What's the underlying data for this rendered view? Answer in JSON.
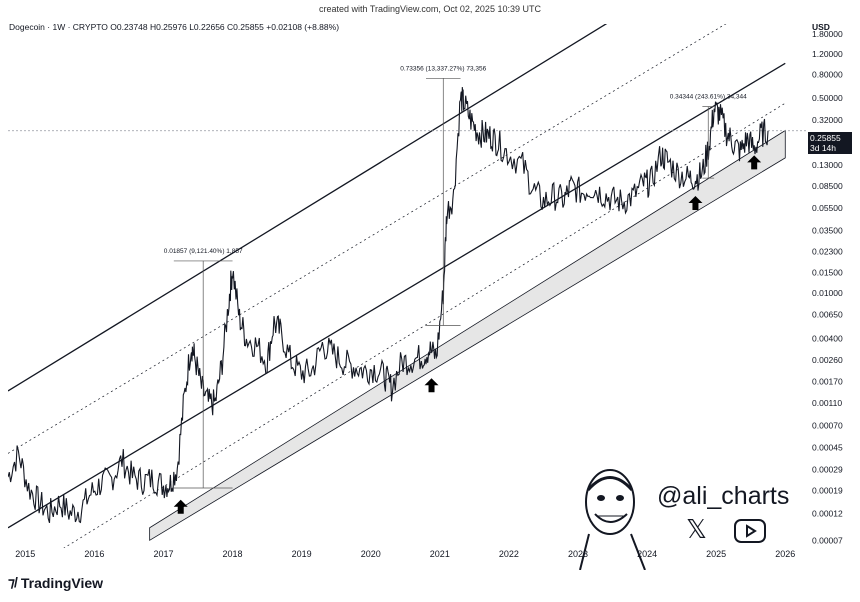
{
  "caption": "created with TradingView.com, Oct 02, 2025 10:39 UTC",
  "footer_brand": "TradingView",
  "watermark": {
    "handle": "@ali_charts"
  },
  "price_tag": {
    "price": "0.25855",
    "countdown": "3d 14h"
  },
  "chart_data": {
    "type": "line",
    "title": "Dogecoin · 1W · CRYPTO",
    "ohlc": {
      "open": "O0.23748",
      "high": "H0.25976",
      "low": "L0.22656",
      "close": "C0.25855",
      "change": "+0.02108 (+8.88%)"
    },
    "currency_label": "USD",
    "y_scale": "log",
    "ylim": [
      6e-05,
      2.2
    ],
    "xlim": [
      2014.75,
      2026.3
    ],
    "x_ticks": [
      "2015",
      "2016",
      "2017",
      "2018",
      "2019",
      "2020",
      "2021",
      "2022",
      "2023",
      "2024",
      "2025",
      "2026"
    ],
    "y_ticks": [
      "1.80000",
      "1.20000",
      "0.80000",
      "0.50000",
      "0.32000",
      "0.20000",
      "0.13000",
      "0.08500",
      "0.05500",
      "0.03500",
      "0.02300",
      "0.01500",
      "0.01000",
      "0.00650",
      "0.00400",
      "0.00260",
      "0.00170",
      "0.00110",
      "0.00070",
      "0.00045",
      "0.00029",
      "0.00019",
      "0.00012",
      "0.00007"
    ],
    "series": [
      {
        "x": [
          2014.75,
          2014.9,
          2015.05,
          2015.2,
          2015.35,
          2015.5,
          2015.65,
          2015.8,
          2015.95,
          2016.1,
          2016.25,
          2016.4,
          2016.55,
          2016.7,
          2016.85,
          2017.0,
          2017.1,
          2017.2,
          2017.3,
          2017.4,
          2017.45,
          2017.55,
          2017.65,
          2017.75,
          2017.85,
          2017.95,
          2018.0,
          2018.1,
          2018.2,
          2018.35,
          2018.5,
          2018.6,
          2018.7,
          2018.85,
          2019.0,
          2019.15,
          2019.3,
          2019.45,
          2019.6,
          2019.75,
          2019.9,
          2020.05,
          2020.2,
          2020.3,
          2020.45,
          2020.6,
          2020.75,
          2020.85,
          2020.95,
          2021.05,
          2021.1,
          2021.2,
          2021.3,
          2021.35,
          2021.45,
          2021.55,
          2021.65,
          2021.75,
          2021.85,
          2022.0,
          2022.2,
          2022.35,
          2022.5,
          2022.65,
          2022.8,
          2022.9,
          2023.05,
          2023.2,
          2023.35,
          2023.5,
          2023.65,
          2023.8,
          2023.95,
          2024.05,
          2024.2,
          2024.3,
          2024.45,
          2024.6,
          2024.7,
          2024.8,
          2024.9,
          2024.97,
          2025.05,
          2025.15,
          2025.25,
          2025.35,
          2025.45,
          2025.55,
          2025.65,
          2025.75
        ],
        "y": [
          0.00025,
          0.0004,
          0.0002,
          0.00015,
          0.00012,
          0.00015,
          0.00012,
          0.00013,
          0.00018,
          0.00022,
          0.00024,
          0.00035,
          0.00025,
          0.00023,
          0.00024,
          0.00021,
          0.00022,
          0.0003,
          0.0012,
          0.0035,
          0.0028,
          0.0015,
          0.0011,
          0.0011,
          0.0025,
          0.009,
          0.016,
          0.006,
          0.004,
          0.0035,
          0.0025,
          0.0055,
          0.0045,
          0.0025,
          0.002,
          0.0021,
          0.0035,
          0.003,
          0.0025,
          0.0023,
          0.0021,
          0.0022,
          0.0019,
          0.0015,
          0.0025,
          0.0026,
          0.0028,
          0.0032,
          0.0028,
          0.01,
          0.05,
          0.07,
          0.5,
          0.45,
          0.32,
          0.25,
          0.24,
          0.23,
          0.2,
          0.16,
          0.13,
          0.08,
          0.062,
          0.07,
          0.065,
          0.085,
          0.075,
          0.083,
          0.073,
          0.065,
          0.062,
          0.07,
          0.09,
          0.09,
          0.16,
          0.14,
          0.11,
          0.1,
          0.1,
          0.11,
          0.2,
          0.4,
          0.36,
          0.25,
          0.2,
          0.17,
          0.22,
          0.18,
          0.24,
          0.25855
        ]
      }
    ],
    "channel": {
      "lower_band": {
        "x": [
          2016.8,
          2026.0
        ],
        "y_bottom": [
          7e-05,
          0.15
        ],
        "y_top": [
          9e-05,
          0.26
        ]
      },
      "mid_line": {
        "x": [
          2014.75,
          2026.0
        ],
        "y": [
          9e-05,
          1.0
        ]
      },
      "upper_line": {
        "x": [
          2014.75,
          2026.0
        ],
        "y": [
          0.0014,
          20
        ]
      },
      "dotted_1": {
        "x": [
          2014.75,
          2026.0
        ],
        "y": [
          3e-05,
          0.45
        ]
      },
      "dotted_2": {
        "x": [
          2014.75,
          2026.0
        ],
        "y": [
          0.0004,
          4.5
        ]
      }
    },
    "annotations": [
      {
        "label": "0.01857 (9,121.40%) 1,857",
        "x0": 2017.15,
        "x1": 2018.0,
        "y_low": 0.0002,
        "y_high": 0.019
      },
      {
        "label": "0.73356 (13,337.27%) 73,356",
        "x0": 2020.8,
        "x1": 2021.3,
        "y_low": 0.0052,
        "y_high": 0.74
      },
      {
        "label": "0.34344 (243.61%) 34,344",
        "x0": 2024.8,
        "x1": 2024.97,
        "y_low": 0.1,
        "y_high": 0.42
      }
    ],
    "arrows": [
      {
        "x": 2017.25,
        "y": 0.00014
      },
      {
        "x": 2020.88,
        "y": 0.0016
      },
      {
        "x": 2024.7,
        "y": 0.062
      },
      {
        "x": 2025.55,
        "y": 0.14
      }
    ],
    "last_price": 0.25855
  }
}
